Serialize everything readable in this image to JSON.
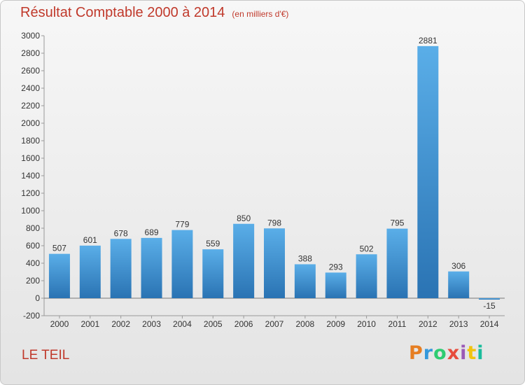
{
  "title": "Résultat Comptable 2000 à 2014",
  "subtitle": "(en milliers d'€)",
  "city": "LE TEIL",
  "brand": {
    "text": "Proxiti",
    "colors": [
      "#e67e22",
      "#3498db",
      "#2ecc71",
      "#e74c3c",
      "#9b59b6",
      "#f1c40f",
      "#1abc9c"
    ]
  },
  "colors": {
    "bar": "#3d8fd0",
    "bar_light": "#5aaee8",
    "bar_dark": "#2a73b3",
    "title": "#c0392b"
  },
  "chart_data": {
    "type": "bar",
    "title": "Résultat Comptable 2000 à 2014",
    "subtitle": "(en milliers d'€)",
    "categories": [
      "2000",
      "2001",
      "2002",
      "2003",
      "2004",
      "2005",
      "2006",
      "2007",
      "2008",
      "2009",
      "2010",
      "2011",
      "2012",
      "2013",
      "2014"
    ],
    "values": [
      507,
      601,
      678,
      689,
      779,
      559,
      850,
      798,
      388,
      293,
      502,
      795,
      2881,
      306,
      -15
    ],
    "xlabel": "",
    "ylabel": "",
    "ylim": [
      -200,
      3000
    ],
    "yticks": [
      -200,
      0,
      200,
      400,
      600,
      800,
      1000,
      1200,
      1400,
      1600,
      1800,
      2000,
      2200,
      2400,
      2600,
      2800,
      3000
    ],
    "grid": false
  }
}
